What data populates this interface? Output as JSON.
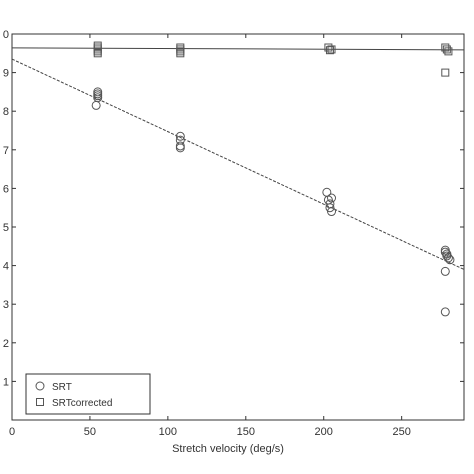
{
  "chart_data": {
    "type": "scatter",
    "title": "",
    "xlabel": "Stretch velocity (deg/s)",
    "ylabel": "",
    "xlim": [
      0,
      290
    ],
    "ylim": [
      0,
      10
    ],
    "x_ticks": [
      0,
      50,
      100,
      150,
      200,
      250
    ],
    "y_ticks": [
      1,
      2,
      3,
      4,
      5,
      6,
      7,
      8,
      9
    ],
    "y_tick_labels": [
      "1",
      "2",
      "3",
      "4",
      "5",
      "6",
      "7",
      "8",
      "9"
    ],
    "y_top_label": "0",
    "grid": false,
    "legend_position": "bottom-left",
    "series": [
      {
        "name": "SRT",
        "marker": "circle",
        "points": [
          [
            55,
            8.5
          ],
          [
            55,
            8.45
          ],
          [
            55,
            8.4
          ],
          [
            55,
            8.35
          ],
          [
            54,
            8.15
          ],
          [
            108,
            7.35
          ],
          [
            108,
            7.25
          ],
          [
            108,
            7.1
          ],
          [
            108,
            7.05
          ],
          [
            202,
            5.9
          ],
          [
            205,
            5.75
          ],
          [
            203,
            5.7
          ],
          [
            204,
            5.6
          ],
          [
            204,
            5.5
          ],
          [
            205,
            5.4
          ],
          [
            278,
            4.4
          ],
          [
            278,
            4.35
          ],
          [
            279,
            4.3
          ],
          [
            279,
            4.25
          ],
          [
            280,
            4.2
          ],
          [
            281,
            4.15
          ],
          [
            278,
            3.85
          ],
          [
            278,
            2.8
          ]
        ]
      },
      {
        "name": "SRTcorrected",
        "marker": "square",
        "points": [
          [
            55,
            9.7
          ],
          [
            55,
            9.65
          ],
          [
            55,
            9.6
          ],
          [
            55,
            9.55
          ],
          [
            55,
            9.5
          ],
          [
            108,
            9.65
          ],
          [
            108,
            9.6
          ],
          [
            108,
            9.55
          ],
          [
            108,
            9.5
          ],
          [
            203,
            9.65
          ],
          [
            205,
            9.6
          ],
          [
            204,
            9.58
          ],
          [
            278,
            9.65
          ],
          [
            279,
            9.6
          ],
          [
            280,
            9.55
          ],
          [
            278,
            9.0
          ]
        ]
      }
    ],
    "fit_lines": [
      {
        "series": "SRT",
        "x": [
          0,
          290
        ],
        "y": [
          9.35,
          3.9
        ]
      },
      {
        "series": "SRTcorrected",
        "x": [
          0,
          290
        ],
        "y": [
          9.64,
          9.59
        ]
      }
    ],
    "colors": {
      "marker": "#555555",
      "axis": "#333333",
      "fit_line": "#444444"
    }
  }
}
